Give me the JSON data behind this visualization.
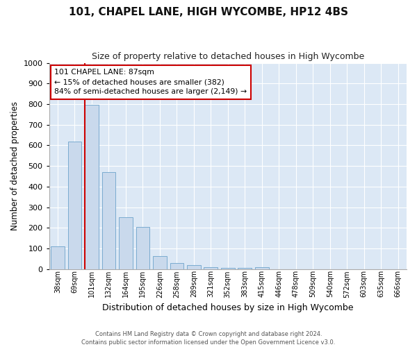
{
  "title": "101, CHAPEL LANE, HIGH WYCOMBE, HP12 4BS",
  "subtitle": "Size of property relative to detached houses in High Wycombe",
  "xlabel": "Distribution of detached houses by size in High Wycombe",
  "ylabel": "Number of detached properties",
  "bins": [
    "38sqm",
    "69sqm",
    "101sqm",
    "132sqm",
    "164sqm",
    "195sqm",
    "226sqm",
    "258sqm",
    "289sqm",
    "321sqm",
    "352sqm",
    "383sqm",
    "415sqm",
    "446sqm",
    "478sqm",
    "509sqm",
    "540sqm",
    "572sqm",
    "603sqm",
    "635sqm",
    "666sqm"
  ],
  "values": [
    110,
    620,
    795,
    470,
    250,
    205,
    63,
    28,
    18,
    10,
    5,
    5,
    10,
    0,
    0,
    0,
    0,
    0,
    0,
    0,
    0
  ],
  "bar_color": "#c9d9ec",
  "bar_edge_color": "#7aabcf",
  "vline_x_index": 2,
  "vline_color": "#cc0000",
  "annotation_title": "101 CHAPEL LANE: 87sqm",
  "annotation_line2": "← 15% of detached houses are smaller (382)",
  "annotation_line3": "84% of semi-detached houses are larger (2,149) →",
  "annotation_box_facecolor": "#ffffff",
  "annotation_box_edgecolor": "#cc0000",
  "ylim": [
    0,
    1000
  ],
  "yticks": [
    0,
    100,
    200,
    300,
    400,
    500,
    600,
    700,
    800,
    900,
    1000
  ],
  "footer_line1": "Contains HM Land Registry data © Crown copyright and database right 2024.",
  "footer_line2": "Contains public sector information licensed under the Open Government Licence v3.0.",
  "fig_facecolor": "#ffffff",
  "plot_bg_color": "#dce8f5",
  "grid_color": "#ffffff"
}
